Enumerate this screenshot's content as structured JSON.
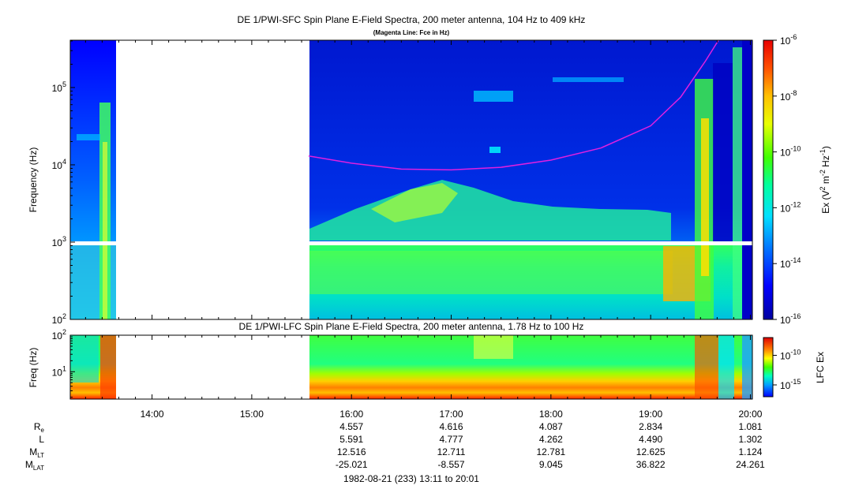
{
  "chart_data": [
    {
      "type": "heatmap",
      "title": "DE 1/PWI-SFC  Spin Plane E-Field Spectra, 200 meter antenna, 104 Hz to 409 kHz",
      "subtitle": "(Magenta Line: Fce in Hz)",
      "ylabel": "Frequency (Hz)",
      "yscale": "log",
      "ylim": [
        100,
        409000
      ],
      "yticks": [
        {
          "value": 100,
          "base": "10",
          "exp": "2"
        },
        {
          "value": 1000,
          "base": "10",
          "exp": "3"
        },
        {
          "value": 10000,
          "base": "10",
          "exp": "4"
        },
        {
          "value": 100000,
          "base": "10",
          "exp": "5"
        }
      ],
      "colorbar": {
        "label": "Ex (V² m⁻² Hz⁻¹)",
        "label_parts": {
          "pre": "Ex (V",
          "e1": "2",
          "mid1": " m",
          "e2": "-2",
          "mid2": " Hz",
          "e3": "-1",
          "post": ")"
        },
        "scale": "log",
        "range": [
          1e-16,
          1e-06
        ],
        "ticks": [
          {
            "value": 1e-06,
            "base": "10",
            "exp": "-6"
          },
          {
            "value": 1e-08,
            "base": "10",
            "exp": "-8"
          },
          {
            "value": 1e-10,
            "base": "10",
            "exp": "-10"
          },
          {
            "value": 1e-12,
            "base": "10",
            "exp": "-12"
          },
          {
            "value": 1e-14,
            "base": "10",
            "exp": "-14"
          },
          {
            "value": 1e-16,
            "base": "10",
            "exp": "-16"
          }
        ]
      },
      "data_gaps": [
        {
          "start_hour": 13.62,
          "end_hour": 15.57,
          "note": "no data"
        }
      ],
      "fce_line": {
        "name": "Fce",
        "color": "#e020e0",
        "points": [
          {
            "hour": 15.57,
            "hz": 13000
          },
          {
            "hour": 16.0,
            "hz": 10500
          },
          {
            "hour": 16.5,
            "hz": 8800
          },
          {
            "hour": 17.0,
            "hz": 8600
          },
          {
            "hour": 17.5,
            "hz": 9300
          },
          {
            "hour": 18.0,
            "hz": 11500
          },
          {
            "hour": 18.5,
            "hz": 16500
          },
          {
            "hour": 19.0,
            "hz": 32000
          },
          {
            "hour": 19.3,
            "hz": 75000
          },
          {
            "hour": 19.55,
            "hz": 220000
          },
          {
            "hour": 19.68,
            "hz": 409000
          }
        ]
      }
    },
    {
      "type": "heatmap",
      "title": "DE 1/PWI-LFC  Spin Plane E-Field Spectra, 200 meter antenna, 1.78 Hz to 100 Hz",
      "ylabel": "Freq (Hz)",
      "yscale": "log",
      "ylim": [
        1.78,
        100
      ],
      "yticks": [
        {
          "value": 10,
          "base": "10",
          "exp": "1"
        },
        {
          "value": 100,
          "base": "10",
          "exp": "2"
        }
      ],
      "colorbar": {
        "label": "LFC Ex",
        "scale": "log",
        "range": [
          1e-17,
          1e-07
        ],
        "ticks": [
          {
            "value": 1e-10,
            "base": "10",
            "exp": "-10"
          },
          {
            "value": 1e-15,
            "base": "10",
            "exp": "-15"
          }
        ]
      },
      "data_gaps": [
        {
          "start_hour": 13.62,
          "end_hour": 15.57,
          "note": "no data"
        }
      ]
    }
  ],
  "time_axis": {
    "range_hours": [
      13.18,
      20.02
    ],
    "ticks": [
      {
        "hour": 14,
        "label": "14:00"
      },
      {
        "hour": 15,
        "label": "15:00"
      },
      {
        "hour": 16,
        "label": "16:00"
      },
      {
        "hour": 17,
        "label": "17:00"
      },
      {
        "hour": 18,
        "label": "18:00"
      },
      {
        "hour": 19,
        "label": "19:00"
      },
      {
        "hour": 20,
        "label": "20:00"
      }
    ]
  },
  "ephemeris": {
    "rows": [
      {
        "label": "R",
        "sub": "e",
        "values": [
          "4.557",
          "4.616",
          "4.087",
          "2.834",
          "1.081"
        ]
      },
      {
        "label": "L",
        "sub": "",
        "values": [
          "5.591",
          "4.777",
          "4.262",
          "4.490",
          "1.302"
        ]
      },
      {
        "label": "M",
        "sub": "LT",
        "values": [
          "12.516",
          "12.711",
          "12.781",
          "12.625",
          "1.124"
        ]
      },
      {
        "label": "M",
        "sub": "LAT",
        "values": [
          "-25.021",
          "-8.557",
          "9.045",
          "36.822",
          "24.261"
        ]
      }
    ],
    "column_hours": [
      16,
      17,
      18,
      19,
      20
    ]
  },
  "footer": "1982-08-21 (233) 13:11 to 20:01"
}
